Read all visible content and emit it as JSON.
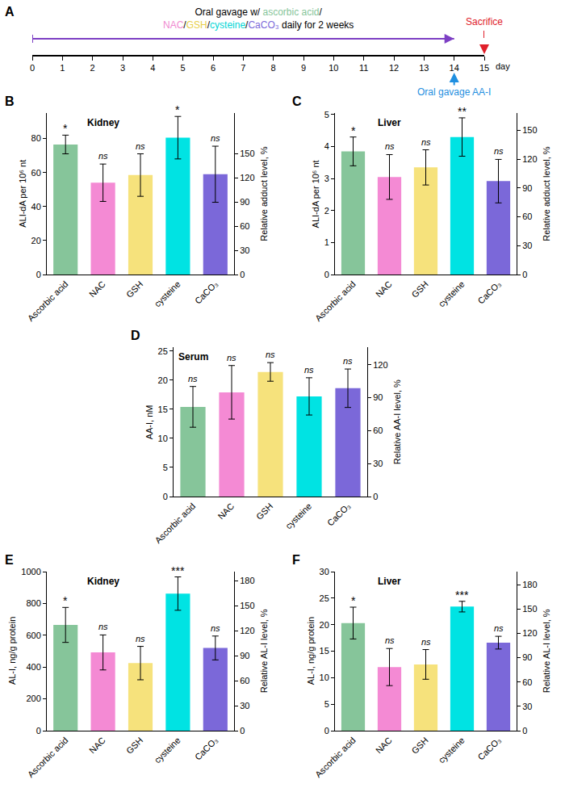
{
  "chart_data": [
    {
      "type": "timeline",
      "panel": "A",
      "xlim": [
        0,
        15
      ],
      "xticks": [
        0,
        1,
        2,
        3,
        4,
        5,
        6,
        7,
        8,
        9,
        10,
        11,
        12,
        13,
        14,
        15
      ],
      "x_label": "day",
      "lines": [
        [
          {
            "text": "Oral gavage w/ "
          },
          {
            "text": "ascorbic acid",
            "color": "#86c59a"
          },
          {
            "text": "/"
          }
        ],
        [
          {
            "text": "NAC",
            "color": "#f08ad0"
          },
          {
            "text": "/"
          },
          {
            "text": "GSH",
            "color": "#e8cf4a"
          },
          {
            "text": "/"
          },
          {
            "text": "cysteine",
            "color": "#00d6d6"
          },
          {
            "text": "/"
          },
          {
            "text": "CaCO₃",
            "color": "#7b68d9"
          },
          {
            "text": " daily for 2 weeks"
          }
        ]
      ],
      "period": {
        "range": [
          0,
          14
        ],
        "color": "#7d3fc4"
      },
      "events": [
        {
          "x": 15,
          "text": "Sacrifice",
          "color": "#e0202a",
          "line_style": "dashed"
        },
        {
          "x": 14,
          "text": "Oral gavage AA-I",
          "color": "#1f8fe0",
          "line_style": "solid"
        }
      ]
    },
    {
      "type": "bar",
      "panel": "B",
      "title": "Kidney",
      "categories": [
        "Ascorbic acid",
        "NAC",
        "GSH",
        "cysteine",
        "CaCO₃"
      ],
      "values": [
        76.5,
        54,
        58.5,
        80.5,
        59
      ],
      "errors": [
        5.5,
        11,
        12.5,
        12.5,
        16.5
      ],
      "annotations": [
        "*",
        "ns",
        "ns",
        "*",
        "ns"
      ],
      "colors": [
        "#86c59a",
        "#f48ad4",
        "#f6e27c",
        "#00e3e3",
        "#7b68d9"
      ],
      "y_label": "ALI-dA per 10⁶ nt",
      "y2_label": "Relative adduct level, %",
      "ylim": [
        0,
        95
      ],
      "yticks": [
        0,
        20,
        40,
        60,
        80
      ],
      "y2lim": [
        0,
        200
      ],
      "y2ticks": [
        0,
        30,
        60,
        90,
        120,
        150
      ]
    },
    {
      "type": "bar",
      "panel": "C",
      "title": "Liver",
      "categories": [
        "Ascorbic acid",
        "NAC",
        "GSH",
        "cysteine",
        "CaCO₃"
      ],
      "values": [
        3.85,
        3.05,
        3.35,
        4.3,
        2.92
      ],
      "errors": [
        0.45,
        0.7,
        0.55,
        0.6,
        0.68
      ],
      "annotations": [
        "*",
        "ns",
        "ns",
        "**",
        "ns"
      ],
      "colors": [
        "#86c59a",
        "#f48ad4",
        "#f6e27c",
        "#00e3e3",
        "#7b68d9"
      ],
      "y_label": "ALI-dA per 10⁶ nt",
      "y2_label": "Relative adduct level, %",
      "ylim": [
        0,
        5.05
      ],
      "yticks": [
        0,
        1,
        2,
        3,
        4,
        5
      ],
      "y2lim": [
        0,
        168
      ],
      "y2ticks": [
        0,
        30,
        60,
        90,
        120,
        150
      ]
    },
    {
      "type": "bar",
      "panel": "D",
      "title": "Serum",
      "categories": [
        "Ascorbic acid",
        "NAC",
        "GSH",
        "cysteine",
        "CaCO₃"
      ],
      "values": [
        15.4,
        17.9,
        21.4,
        17.2,
        18.6
      ],
      "errors": [
        3.5,
        4.6,
        1.6,
        3.2,
        3.3
      ],
      "annotations": [
        "ns",
        "ns",
        "ns",
        "ns",
        "ns"
      ],
      "colors": [
        "#86c59a",
        "#f48ad4",
        "#f6e27c",
        "#00e3e3",
        "#7b68d9"
      ],
      "y_label": "AA-I, nM",
      "y2_label": "Relative AA-I level, %",
      "ylim": [
        0,
        25.65
      ],
      "yticks": [
        0,
        5,
        10,
        15,
        20,
        25
      ],
      "y2lim": [
        0,
        136
      ],
      "y2ticks": [
        0,
        30,
        60,
        90,
        120
      ]
    },
    {
      "type": "bar",
      "panel": "E",
      "title": "Kidney",
      "categories": [
        "Ascorbic acid",
        "NAC",
        "GSH",
        "cysteine",
        "CaCO₃"
      ],
      "values": [
        665,
        492,
        425,
        862,
        520
      ],
      "errors": [
        110,
        110,
        105,
        105,
        75
      ],
      "annotations": [
        "*",
        "ns",
        "ns",
        "***",
        "ns"
      ],
      "colors": [
        "#86c59a",
        "#f48ad4",
        "#f6e27c",
        "#00e3e3",
        "#7b68d9"
      ],
      "y_label": "AL-I, ng/g protein",
      "y2_label": "Relative AL-I level, %",
      "ylim": [
        0,
        1000
      ],
      "yticks": [
        0,
        200,
        400,
        600,
        800,
        1000
      ],
      "y2lim": [
        0,
        191
      ],
      "y2ticks": [
        0,
        30,
        60,
        90,
        120,
        150,
        180
      ]
    },
    {
      "type": "bar",
      "panel": "F",
      "title": "Liver",
      "categories": [
        "Ascorbic acid",
        "NAC",
        "GSH",
        "cysteine",
        "CaCO₃"
      ],
      "values": [
        20.3,
        12,
        12.5,
        23.4,
        16.6
      ],
      "errors": [
        3,
        3.5,
        2.8,
        1,
        1.2
      ],
      "annotations": [
        "*",
        "ns",
        "ns",
        "***",
        "ns"
      ],
      "colors": [
        "#86c59a",
        "#f48ad4",
        "#f6e27c",
        "#00e3e3",
        "#7b68d9"
      ],
      "y_label": "AL-I, ng/g protein",
      "y2_label": "Relative AL-I level, %",
      "ylim": [
        0,
        30
      ],
      "yticks": [
        0,
        5,
        10,
        15,
        20,
        25,
        30
      ],
      "y2lim": [
        0,
        196
      ],
      "y2ticks": [
        0,
        30,
        60,
        90,
        120,
        150,
        180
      ]
    }
  ]
}
